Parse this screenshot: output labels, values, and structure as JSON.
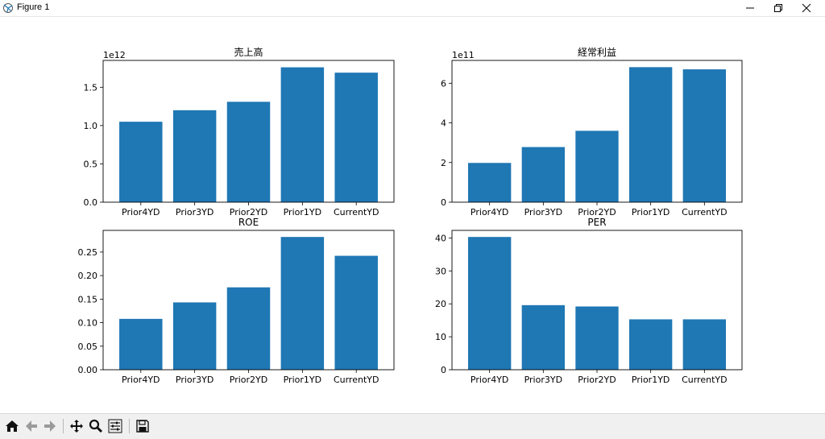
{
  "window": {
    "title": "Figure 1"
  },
  "window_controls": [
    "minimize-icon",
    "restore-icon",
    "close-icon"
  ],
  "toolbar": {
    "buttons": [
      "home-icon",
      "back-icon",
      "forward-icon",
      "pan-icon",
      "zoom-icon",
      "configure-subplots-icon",
      "save-icon"
    ]
  },
  "colors": {
    "bar": "#1f77b4",
    "toolbar_bg": "#f0f0f0"
  },
  "chart_data": [
    {
      "type": "bar",
      "title": "売上高",
      "categories": [
        "Prior4YD",
        "Prior3YD",
        "Prior2YD",
        "Prior1YD",
        "CurrentYD"
      ],
      "values": [
        1.05,
        1.2,
        1.31,
        1.76,
        1.69
      ],
      "offset_label": "1e12",
      "yticks": [
        0.0,
        0.5,
        1.0,
        1.5
      ],
      "ytick_labels": [
        "0.0",
        "0.5",
        "1.0",
        "1.5"
      ],
      "ylim": [
        0,
        1.85
      ],
      "grid": false
    },
    {
      "type": "bar",
      "title": "経常利益",
      "categories": [
        "Prior4YD",
        "Prior3YD",
        "Prior2YD",
        "Prior1YD",
        "CurrentYD"
      ],
      "values": [
        1.98,
        2.78,
        3.6,
        6.81,
        6.7
      ],
      "offset_label": "1e11",
      "yticks": [
        0,
        2,
        4,
        6
      ],
      "ytick_labels": [
        "0",
        "2",
        "4",
        "6"
      ],
      "ylim": [
        0,
        7.15
      ],
      "grid": false
    },
    {
      "type": "bar",
      "title": "ROE",
      "categories": [
        "Prior4YD",
        "Prior3YD",
        "Prior2YD",
        "Prior1YD",
        "CurrentYD"
      ],
      "values": [
        0.108,
        0.143,
        0.175,
        0.282,
        0.242
      ],
      "yticks": [
        0.0,
        0.05,
        0.1,
        0.15,
        0.2,
        0.25
      ],
      "ytick_labels": [
        "0.00",
        "0.05",
        "0.10",
        "0.15",
        "0.20",
        "0.25"
      ],
      "ylim": [
        0,
        0.296
      ],
      "grid": false
    },
    {
      "type": "bar",
      "title": "PER",
      "categories": [
        "Prior4YD",
        "Prior3YD",
        "Prior2YD",
        "Prior1YD",
        "CurrentYD"
      ],
      "values": [
        40.3,
        19.6,
        19.2,
        15.3,
        15.3
      ],
      "yticks": [
        0,
        10,
        20,
        30,
        40
      ],
      "ytick_labels": [
        "0",
        "10",
        "20",
        "30",
        "40"
      ],
      "ylim": [
        0,
        42.3
      ],
      "grid": false
    }
  ]
}
